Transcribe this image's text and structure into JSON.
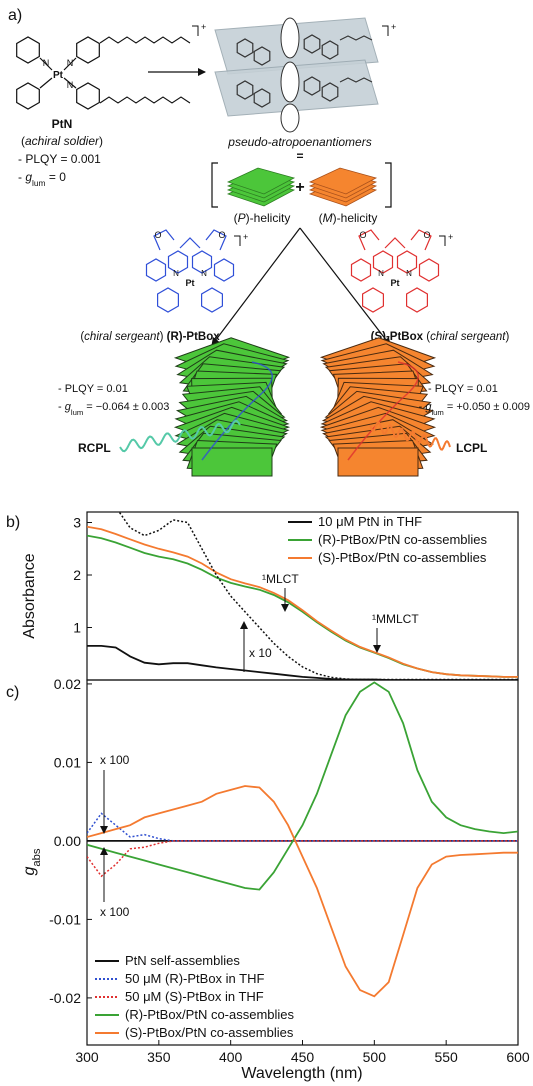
{
  "panel_labels": [
    "a)",
    "b)",
    "c)"
  ],
  "scheme": {
    "atoms": {
      "pt": "Pt",
      "n": "N",
      "o": "O",
      "charge": "+"
    },
    "ptn": {
      "name": "PtN",
      "role": [
        "(",
        "achiral soldier",
        ")"
      ],
      "plqy": "- PLQY = 0.001",
      "glum": [
        "- ",
        "g",
        "lum",
        " = 0"
      ]
    },
    "assembly": {
      "caption": "pseudo-atropoenantiomers",
      "equals": "=",
      "plus": "+",
      "p": [
        "(",
        "P",
        ")-helicity"
      ],
      "m": [
        "(",
        "M",
        ")-helicity"
      ]
    },
    "r": {
      "label": [
        "(",
        "chiral sergeant",
        ") ",
        "(R)-PtBox"
      ],
      "plqy": "- PLQY = 0.01",
      "glum": [
        "- ",
        "g",
        "lum",
        " = −0.064 ± 0.003"
      ],
      "light": "RCPL"
    },
    "s": {
      "label": [
        "(S)-PtBox",
        " (",
        "chiral sergeant",
        ")"
      ],
      "plqy": "- PLQY = 0.01",
      "glum": [
        "- ",
        "g",
        "lum",
        " = +0.050 ± 0.009"
      ],
      "light": "LCPL"
    }
  },
  "chart_data": [
    {
      "type": "line",
      "y_label": "Absorbance",
      "x": [
        300,
        310,
        320,
        330,
        340,
        350,
        360,
        370,
        380,
        390,
        400,
        410,
        420,
        430,
        440,
        450,
        460,
        470,
        480,
        490,
        500,
        510,
        520,
        530,
        540,
        550,
        560,
        570,
        580,
        590,
        600
      ],
      "xlim": [
        300,
        600
      ],
      "ylim": [
        0,
        3.2
      ],
      "yticks": [
        1,
        2,
        3
      ],
      "legend": "upper right",
      "annotations": [
        "¹MLCT",
        "¹MMLCT",
        "x 10"
      ],
      "series": [
        {
          "name": "10 μM PtN in THF",
          "color": "#111111",
          "values": [
            0.65,
            0.65,
            0.62,
            0.45,
            0.33,
            0.3,
            0.32,
            0.32,
            0.28,
            0.24,
            0.21,
            0.18,
            0.15,
            0.12,
            0.09,
            0.06,
            0.04,
            0.02,
            0.01,
            0.01,
            0.01,
            0,
            0,
            0,
            0,
            0,
            0,
            0,
            0,
            0,
            0
          ]
        },
        {
          "name": "(R)-PtBox/PtN co-assemblies",
          "color": "#3aa335",
          "values": [
            2.75,
            2.7,
            2.62,
            2.52,
            2.42,
            2.35,
            2.3,
            2.22,
            2.1,
            1.95,
            1.85,
            1.78,
            1.72,
            1.62,
            1.48,
            1.3,
            1.1,
            0.92,
            0.75,
            0.62,
            0.52,
            0.42,
            0.3,
            0.22,
            0.15,
            0.11,
            0.09,
            0.08,
            0.07,
            0.06,
            0.06
          ]
        },
        {
          "name": "(S)-PtBox/PtN co-assemblies",
          "color": "#f47a30",
          "values": [
            2.92,
            2.87,
            2.78,
            2.68,
            2.58,
            2.5,
            2.43,
            2.35,
            2.22,
            2.05,
            1.92,
            1.84,
            1.77,
            1.66,
            1.52,
            1.33,
            1.12,
            0.94,
            0.77,
            0.63,
            0.53,
            0.43,
            0.31,
            0.22,
            0.15,
            0.11,
            0.09,
            0.08,
            0.07,
            0.06,
            0.06
          ]
        },
        {
          "color": "#111111",
          "dash": "dot",
          "values": [
            3.6,
            3.4,
            3.3,
            2.9,
            2.75,
            2.85,
            3.05,
            3.0,
            2.5,
            2.0,
            1.6,
            1.3,
            1.0,
            0.7,
            0.45,
            0.25,
            0.12,
            0.05,
            0.02,
            0.01,
            0.01,
            0.01,
            0.01,
            0.01,
            0.01,
            0.01,
            0.01,
            0.01,
            0.01,
            0.01,
            0.01
          ]
        }
      ]
    },
    {
      "type": "line",
      "x_label": "Wavelength (nm)",
      "y_label": [
        "g",
        "abs"
      ],
      "x": [
        300,
        310,
        320,
        330,
        340,
        350,
        360,
        370,
        380,
        390,
        400,
        410,
        420,
        430,
        440,
        450,
        460,
        470,
        480,
        490,
        500,
        510,
        520,
        530,
        540,
        550,
        560,
        570,
        580,
        590,
        600
      ],
      "xlim": [
        300,
        600
      ],
      "xticks": [
        300,
        350,
        400,
        450,
        500,
        550,
        600
      ],
      "ylim": [
        -0.026,
        0.0205
      ],
      "yticks": [
        0.02,
        0.01,
        {
          "value": 0,
          "label": "0.00"
        },
        -0.01,
        -0.02
      ],
      "legend": "lower left",
      "annotations": [
        "x 100",
        "x 100"
      ],
      "series": [
        {
          "name": "PtN self-assemblies",
          "color": "#111111",
          "values": [
            0,
            0,
            0,
            0,
            0,
            0,
            0,
            0,
            0,
            0,
            0,
            0,
            0,
            0,
            0,
            0,
            0,
            0,
            0,
            0,
            0,
            0,
            0,
            0,
            0,
            0,
            0,
            0,
            0,
            0,
            0
          ]
        },
        {
          "name": "50 μM (R)-PtBox in THF",
          "color": "#3050d0",
          "dash": "dot",
          "values": [
            0.001,
            0.0035,
            0.002,
            0.0005,
            0.0008,
            0.0003,
            0,
            0,
            0,
            0,
            0,
            0,
            0,
            0,
            0,
            0,
            0,
            0,
            0,
            0,
            0,
            0,
            0,
            0,
            0,
            0,
            0,
            0,
            0,
            0,
            0
          ]
        },
        {
          "name": "50 μM (S)-PtBox in THF",
          "color": "#e03030",
          "dash": "dot",
          "values": [
            -0.002,
            -0.0045,
            -0.003,
            -0.001,
            -0.0008,
            -0.0003,
            0,
            0,
            0,
            0,
            0,
            0,
            0,
            0,
            0,
            0,
            0,
            0,
            0,
            0,
            0,
            0,
            0,
            0,
            0,
            0,
            0,
            0,
            0,
            0,
            0
          ]
        },
        {
          "name": "(R)-PtBox/PtN co-assemblies",
          "color": "#3aa335",
          "values": [
            -0.0005,
            -0.001,
            -0.0015,
            -0.002,
            -0.0025,
            -0.003,
            -0.0035,
            -0.004,
            -0.0045,
            -0.005,
            -0.0055,
            -0.006,
            -0.0062,
            -0.004,
            -0.001,
            0.002,
            0.006,
            0.011,
            0.016,
            0.019,
            0.0202,
            0.019,
            0.015,
            0.009,
            0.005,
            0.003,
            0.002,
            0.0015,
            0.0012,
            0.001,
            0.0012
          ]
        },
        {
          "name": "(S)-PtBox/PtN co-assemblies",
          "color": "#f47a30",
          "values": [
            0.0005,
            0.001,
            0.0015,
            0.002,
            0.003,
            0.0035,
            0.004,
            0.0045,
            0.005,
            0.006,
            0.0065,
            0.007,
            0.0068,
            0.005,
            0.002,
            -0.002,
            -0.006,
            -0.011,
            -0.016,
            -0.019,
            -0.0198,
            -0.018,
            -0.012,
            -0.006,
            -0.003,
            -0.002,
            -0.0018,
            -0.0017,
            -0.0016,
            -0.0015,
            -0.0015
          ]
        }
      ]
    }
  ]
}
